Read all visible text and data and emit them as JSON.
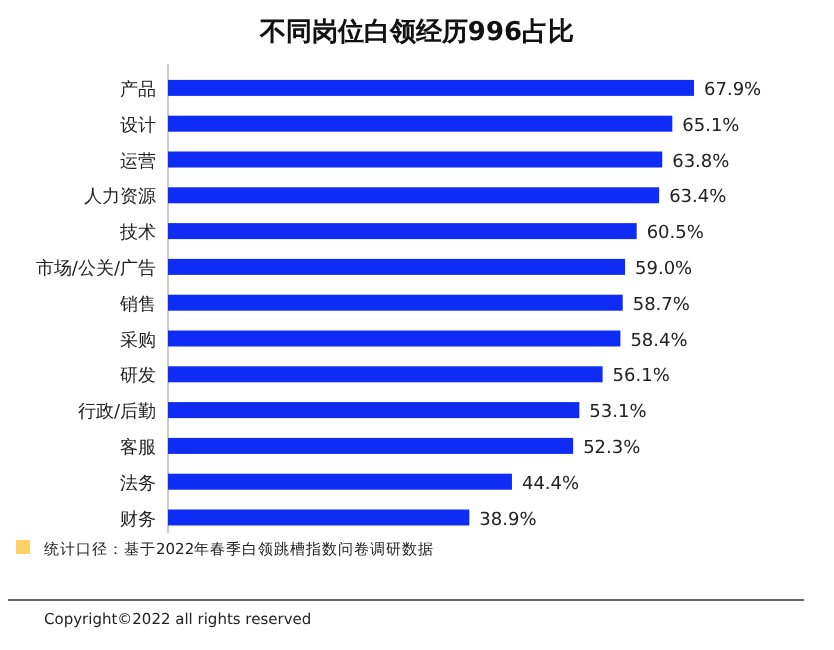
{
  "chart_data": {
    "type": "bar",
    "orientation": "horizontal",
    "title": "不同岗位白领经历996占比",
    "categories": [
      "产品",
      "设计",
      "运营",
      "人力资源",
      "技术",
      "市场/公关/广告",
      "销售",
      "采购",
      "研发",
      "行政/后勤",
      "客服",
      "法务",
      "财务"
    ],
    "values": [
      67.9,
      65.1,
      63.8,
      63.4,
      60.5,
      59.0,
      58.7,
      58.4,
      56.1,
      53.1,
      52.3,
      44.4,
      38.9
    ],
    "value_labels": [
      "67.9%",
      "65.1%",
      "63.8%",
      "63.4%",
      "60.5%",
      "59.0%",
      "58.7%",
      "58.4%",
      "56.1%",
      "53.1%",
      "52.3%",
      "44.4%",
      "38.9%"
    ],
    "color": "#0f2cf5",
    "annotations": [
      "统计口径：基于2022年春季白领跳槽指数问卷调研数据",
      "Copyright©2022 all rights reserved"
    ]
  }
}
